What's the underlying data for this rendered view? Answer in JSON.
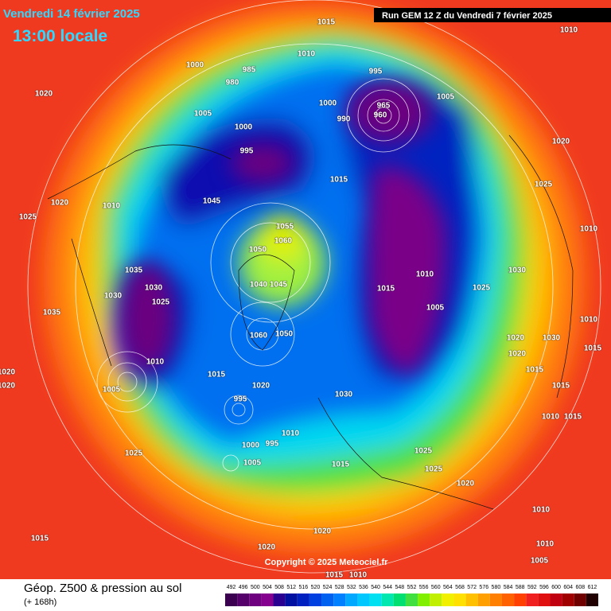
{
  "header": {
    "date": "Vendredi 14 février 2025",
    "time": "13:00 locale",
    "run": "Run GEM 12 Z du Vendredi 7 février 2025"
  },
  "footer": {
    "title": "Géop. Z500 & pression au sol",
    "lead": "(+ 168h)",
    "copyright": "Copyright © 2025 Meteociel.fr"
  },
  "legend": {
    "values": [
      492,
      496,
      500,
      504,
      508,
      512,
      516,
      520,
      524,
      528,
      532,
      536,
      540,
      544,
      548,
      552,
      556,
      560,
      564,
      568,
      572,
      576,
      580,
      584,
      588,
      592,
      596,
      600,
      604,
      608,
      612
    ],
    "colors": [
      "#3c0050",
      "#55006a",
      "#6e0080",
      "#85008f",
      "#2a0090",
      "#0010a0",
      "#0020c0",
      "#0040e0",
      "#0060f0",
      "#0080ff",
      "#00a8ff",
      "#00c8ff",
      "#00e0f0",
      "#00e8b0",
      "#00e070",
      "#40e040",
      "#80f000",
      "#c0f000",
      "#f0f000",
      "#ffe000",
      "#ffc000",
      "#ffa000",
      "#ff8000",
      "#ff6000",
      "#ff4000",
      "#f02020",
      "#e01010",
      "#c00010",
      "#a00000",
      "#700000",
      "#200000"
    ]
  },
  "isobars": [
    "1015",
    "1010",
    "1010",
    "1020",
    "995",
    "1005",
    "965",
    "960",
    "990",
    "1000",
    "985",
    "980",
    "1000",
    "1005",
    "1000",
    "995",
    "1015",
    "1020",
    "1025",
    "1045",
    "1055",
    "1060",
    "1050",
    "1045",
    "1040",
    "1010",
    "1025",
    "1020",
    "1035",
    "1030",
    "1025",
    "1030",
    "1015",
    "1010",
    "1005",
    "1030",
    "1025",
    "1010",
    "1060",
    "1050",
    "1010",
    "1005",
    "1015",
    "1020",
    "1030",
    "995",
    "1000",
    "1005",
    "995",
    "1010",
    "1015",
    "1025",
    "1025",
    "1020",
    "1020",
    "1015",
    "1015",
    "1010",
    "1015",
    "1025",
    "1010",
    "1010",
    "1015",
    "1020",
    "1020",
    "1005",
    "1015",
    "1010",
    "1020",
    "1030",
    "1015",
    "1020",
    "1020",
    "1035",
    "1010"
  ]
}
